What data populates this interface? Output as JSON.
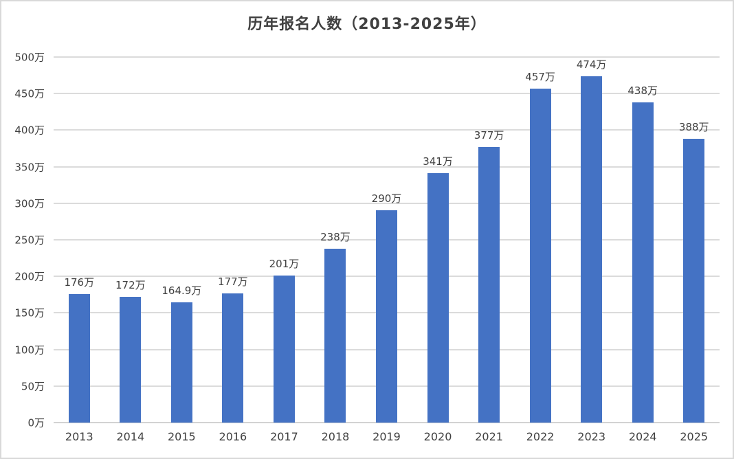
{
  "chart_data": {
    "type": "bar",
    "title": "历年报名人数（2013-2025年）",
    "categories": [
      "2013",
      "2014",
      "2015",
      "2016",
      "2017",
      "2018",
      "2019",
      "2020",
      "2021",
      "2022",
      "2023",
      "2024",
      "2025"
    ],
    "values": [
      176,
      172,
      164.9,
      177,
      201,
      238,
      290,
      341,
      377,
      457,
      474,
      438,
      388
    ],
    "value_labels": [
      "176万",
      "172万",
      "164.9万",
      "177万",
      "201万",
      "238万",
      "290万",
      "341万",
      "377万",
      "457万",
      "474万",
      "438万",
      "388万"
    ],
    "xlabel": "",
    "ylabel": "",
    "ylim": [
      0,
      500
    ],
    "ytick_step": 50,
    "ytick_labels": [
      "0万",
      "50万",
      "100万",
      "150万",
      "200万",
      "250万",
      "300万",
      "350万",
      "400万",
      "450万",
      "500万"
    ],
    "grid": true,
    "legend": "none",
    "bar_color": "#4472C4",
    "gridline_color": "#DBDBDB",
    "text_color": "#404040",
    "frame_border_color": "#D9D9D9"
  }
}
